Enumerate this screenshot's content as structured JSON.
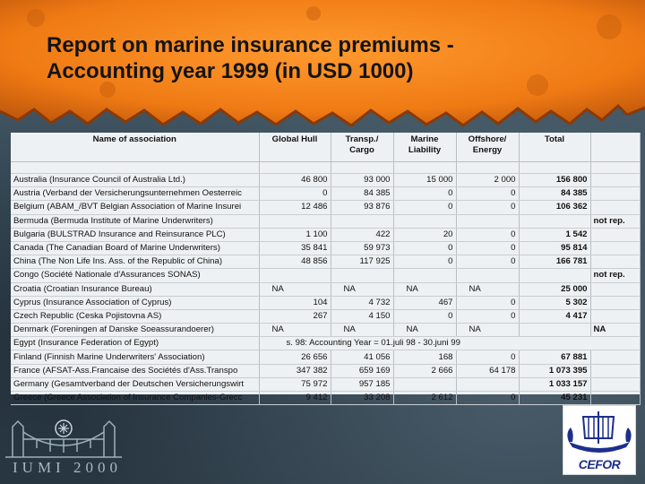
{
  "title": {
    "line1": "Report on marine insurance premiums -",
    "line2": "Accounting year 1999 (in USD 1000)"
  },
  "colors": {
    "banner": "#ef7a14",
    "banner_dark": "#b8500a",
    "sheet": "#eef1f3",
    "logo_blue": "#1d2f8c"
  },
  "table": {
    "headers": {
      "name": "Name of association",
      "hull": "Global Hull",
      "cargo_1": "Transp./",
      "cargo_2": "Cargo",
      "liab_1": "Marine",
      "liab_2": "Liability",
      "off_1": "Offshore/",
      "off_2": "Energy",
      "total": "Total"
    },
    "rows": [
      {
        "name": "Australia (Insurance Council of Australia Ltd.)",
        "hull": "46 800",
        "cargo": "93 000",
        "liab": "15 000",
        "off": "2 000",
        "total": "156 800",
        "note": ""
      },
      {
        "name": "Austria (Verband der Versicherungsunternehmen Oesterreic",
        "hull": "0",
        "cargo": "84 385",
        "liab": "0",
        "off": "0",
        "total": "84 385",
        "note": ""
      },
      {
        "name": "Belgium (ABAM_/BVT Belgian Association of Marine Insurei",
        "hull": "12 486",
        "cargo": "93 876",
        "liab": "0",
        "off": "0",
        "total": "106 362",
        "note": ""
      },
      {
        "name": "Bermuda (Bermuda Institute of Marine Underwriters)",
        "hull": "",
        "cargo": "",
        "liab": "",
        "off": "",
        "total": "",
        "note": "not rep."
      },
      {
        "name": "Bulgaria (BULSTRAD Insurance and Reinsurance PLC)",
        "hull": "1 100",
        "cargo": "422",
        "liab": "20",
        "off": "0",
        "total": "1 542",
        "note": ""
      },
      {
        "name": "Canada (The Canadian Board of Marine Underwriters)",
        "hull": "35 841",
        "cargo": "59 973",
        "liab": "0",
        "off": "0",
        "total": "95 814",
        "note": ""
      },
      {
        "name": "China (The Non Life Ins. Ass. of the Republic of China)",
        "hull": "48 856",
        "cargo": "117 925",
        "liab": "0",
        "off": "0",
        "total": "166 781",
        "note": ""
      },
      {
        "name": "Congo (Société Nationale d'Assurances SONAS)",
        "hull": "",
        "cargo": "",
        "liab": "",
        "off": "",
        "total": "",
        "note": "not rep."
      },
      {
        "name": "Croatia (Croatian Insurance Bureau)",
        "hull": "NA",
        "cargo": "NA",
        "liab": "NA",
        "off": "NA",
        "total": "25 000",
        "note": ""
      },
      {
        "name": "Cyprus (Insurance Association of Cyprus)",
        "hull": "104",
        "cargo": "4 732",
        "liab": "467",
        "off": "0",
        "total": "5 302",
        "note": ""
      },
      {
        "name": "Czech Republic (Ceska Pojistovna AS)",
        "hull": "267",
        "cargo": "4 150",
        "liab": "0",
        "off": "0",
        "total": "4 417",
        "note": ""
      },
      {
        "name": "Denmark (Foreningen af Danske Soeassurandoerer)",
        "hull": "NA",
        "cargo": "NA",
        "liab": "NA",
        "off": "NA",
        "total": "",
        "note": "NA"
      },
      {
        "name": "Egypt (Insurance Federation of Egypt)",
        "span": "s. 98: Accounting Year = 01.juli 98 - 30.juni 99"
      },
      {
        "name": "Finland (Finnish Marine Underwriters' Association)",
        "hull": "26 656",
        "cargo": "41 056",
        "liab": "168",
        "off": "0",
        "total": "67 881",
        "note": ""
      },
      {
        "name": "France (AFSAT-Ass.Francaise des Sociétés d'Ass.Transpo",
        "hull": "347 382",
        "cargo": "659 169",
        "liab": "2 666",
        "off": "64 178",
        "total": "1 073 395",
        "note": ""
      },
      {
        "name": "Germany (Gesamtverband der Deutschen Versicherungswirt",
        "hull": "75 972",
        "cargo": "957 185",
        "liab": "",
        "off": "",
        "total": "1 033 157",
        "note": ""
      },
      {
        "name": "Greece (Greece Association of Insurance Companies-Grecc",
        "hull": "9 412",
        "cargo": "33 208",
        "liab": "2 612",
        "off": "0",
        "total": "45 231",
        "note": ""
      }
    ]
  },
  "logos": {
    "left_text": "IUMI 2000",
    "right_text": "CEFOR"
  }
}
